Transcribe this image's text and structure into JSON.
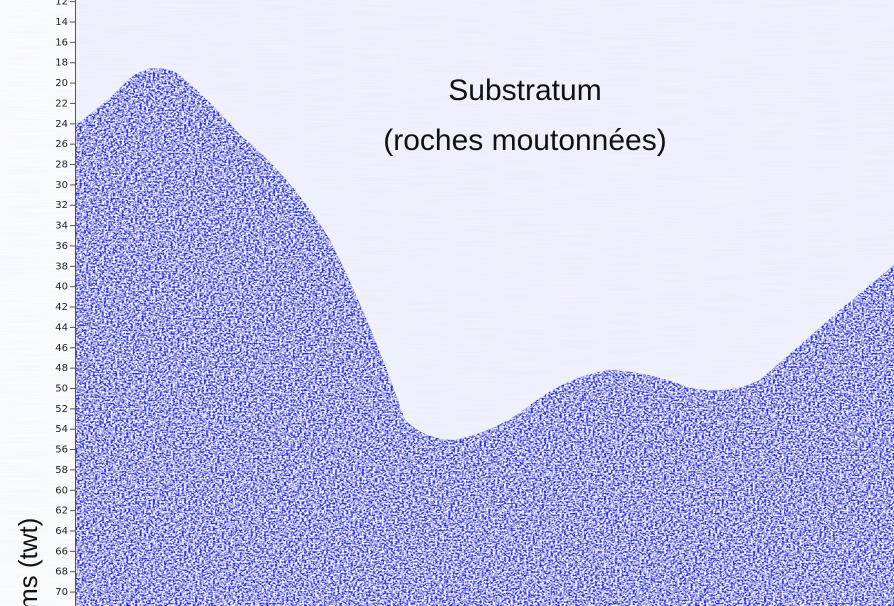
{
  "axis": {
    "label": "ms (twt)",
    "ticks": [
      12,
      14,
      16,
      18,
      20,
      22,
      24,
      26,
      28,
      30,
      32,
      34,
      36,
      38,
      40,
      42,
      44,
      46,
      48,
      50,
      52,
      54,
      56,
      58,
      60,
      62,
      64,
      66,
      68,
      70
    ]
  },
  "annotation": {
    "lines": [
      "Substratum",
      "(roches moutonnées)"
    ]
  }
}
